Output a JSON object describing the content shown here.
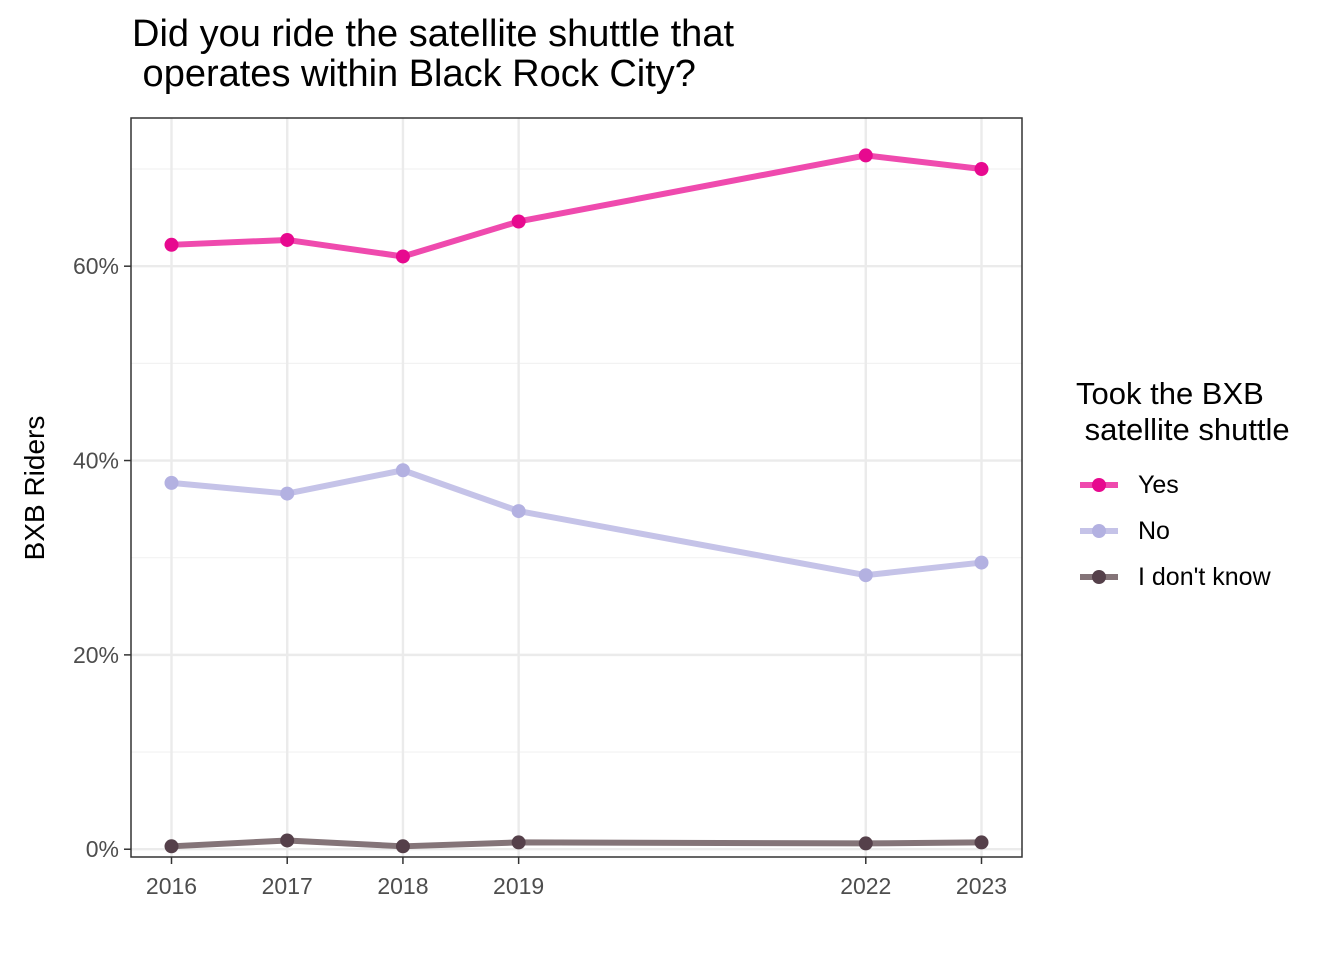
{
  "chart_data": {
    "type": "line",
    "title": "Did you ride the satellite shuttle that\n operates within Black Rock City?",
    "xlabel": "",
    "ylabel": "BXB Riders",
    "x": [
      2016,
      2017,
      2018,
      2019,
      2022,
      2023
    ],
    "x_tick_labels": [
      "2016",
      "2017",
      "2018",
      "2019",
      "2022",
      "2023"
    ],
    "xlim": [
      2015.65,
      2023.35
    ],
    "ylim": [
      -0.008,
      0.7525
    ],
    "y_ticks": [
      0,
      0.2,
      0.4,
      0.6
    ],
    "y_tick_labels": [
      "0%",
      "20%",
      "40%",
      "60%"
    ],
    "grid": true,
    "legend": {
      "title": "Took the BXB\n satellite shuttle",
      "placement": "right"
    },
    "series": [
      {
        "name": "Yes",
        "color": "#e7098f",
        "line_color": "#ef4aae",
        "values": [
          0.622,
          0.627,
          0.61,
          0.646,
          0.714,
          0.7
        ]
      },
      {
        "name": "No",
        "color": "#b3b1e1",
        "line_color": "#c5c3e8",
        "values": [
          0.377,
          0.366,
          0.39,
          0.348,
          0.282,
          0.295
        ]
      },
      {
        "name": "I don't know",
        "color": "#55404a",
        "line_color": "#847478",
        "values": [
          0.003,
          0.009,
          0.003,
          0.007,
          0.006,
          0.007
        ]
      }
    ]
  }
}
